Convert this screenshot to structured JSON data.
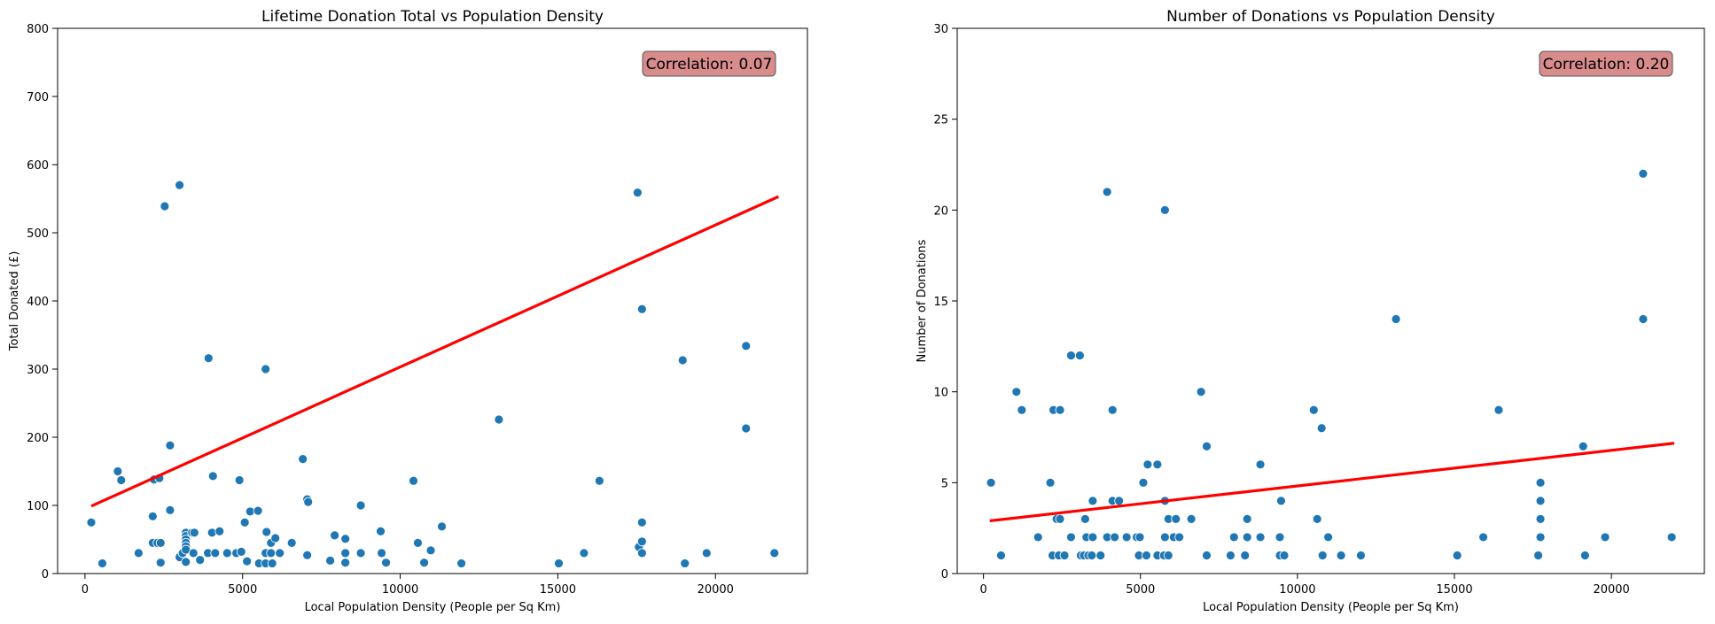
{
  "chart_data": [
    {
      "type": "scatter",
      "title": "Lifetime Donation Total vs Population Density",
      "xlabel": "Local Population Density (People per Sq Km)",
      "ylabel": "Total Donated (£)",
      "xlim": [
        -868,
        22917
      ],
      "ylim": [
        0,
        800
      ],
      "xticks": [
        0,
        5000,
        10000,
        15000,
        20000
      ],
      "yticks": [
        0,
        100,
        200,
        300,
        400,
        500,
        600,
        700,
        800
      ],
      "annotation": "Correlation: 0.07",
      "annotation_placement": "top-right",
      "point_color": "#1f77b4",
      "trend_color": "#ff0000",
      "annotation_bg": "#d98c8c",
      "trend": {
        "slope": 0.02083,
        "intercept": 94.8,
        "x_range": [
          200,
          22000
        ]
      },
      "x": [
        200,
        550,
        1040,
        1150,
        1700,
        2150,
        2150,
        2190,
        2300,
        2400,
        2360,
        2400,
        2530,
        2700,
        2700,
        3000,
        3000,
        3100,
        3200,
        3200,
        3200,
        3200,
        3200,
        3200,
        3200,
        3400,
        3440,
        3470,
        3650,
        3900,
        3920,
        4030,
        4060,
        4130,
        4270,
        4510,
        4800,
        4900,
        4960,
        5070,
        5140,
        5240,
        5490,
        5520,
        5730,
        5730,
        5760,
        5730,
        5900,
        5900,
        5940,
        6040,
        6180,
        6560,
        6910,
        7050,
        7080,
        7050,
        7780,
        7920,
        8260,
        8260,
        8260,
        8750,
        8750,
        9380,
        9410,
        9550,
        10420,
        10560,
        10760,
        10970,
        11320,
        11940,
        13130,
        15030,
        15830,
        16320,
        17530,
        17570,
        17670,
        17670,
        17670,
        17670,
        18960,
        19030,
        19720,
        20970,
        20970,
        21870
      ],
      "y": [
        75,
        15,
        150,
        137,
        30,
        84,
        45,
        138,
        45,
        45,
        140,
        16,
        539,
        93,
        188,
        570,
        24,
        30,
        17,
        60,
        55,
        50,
        45,
        40,
        35,
        60,
        30,
        60,
        20,
        30,
        316,
        60,
        143,
        30,
        62,
        30,
        30,
        137,
        32,
        75,
        18,
        91,
        92,
        15,
        300,
        30,
        61,
        15,
        30,
        45,
        15,
        52,
        30,
        45,
        168,
        109,
        105,
        27,
        19,
        56,
        51,
        30,
        16,
        100,
        30,
        62,
        30,
        16,
        136,
        45,
        16,
        34,
        69,
        15,
        226,
        15,
        30,
        136,
        559,
        39,
        388,
        75,
        47,
        30,
        313,
        15,
        30,
        334,
        213,
        30
      ]
    },
    {
      "type": "scatter",
      "title": "Number of Donations vs Population Density",
      "xlabel": "Local Population Density (People per Sq Km)",
      "ylabel": "Number of Donations",
      "xlim": [
        -836,
        22960
      ],
      "ylim": [
        0,
        30
      ],
      "xticks": [
        0,
        5000,
        10000,
        15000,
        20000
      ],
      "yticks": [
        0,
        5,
        10,
        15,
        20,
        25,
        30
      ],
      "annotation": "Correlation: 0.20",
      "annotation_placement": "top-right",
      "point_color": "#1f77b4",
      "trend_color": "#ff0000",
      "annotation_bg": "#d98c8c",
      "trend": {
        "slope": 0.000196,
        "intercept": 2.86,
        "x_range": [
          200,
          22000
        ]
      },
      "x": [
        240,
        560,
        1050,
        1220,
        1740,
        2130,
        2230,
        2200,
        2330,
        2400,
        2440,
        2440,
        2580,
        2790,
        2790,
        3070,
        3100,
        3200,
        3240,
        3280,
        3340,
        3480,
        3450,
        3480,
        3730,
        3940,
        3940,
        4110,
        4110,
        4180,
        4320,
        4560,
        4880,
        4980,
        5090,
        4950,
        5190,
        5230,
        5540,
        5540,
        5780,
        5780,
        5780,
        5750,
        5890,
        5890,
        6060,
        6130,
        6240,
        6620,
        6930,
        7110,
        7110,
        7870,
        7980,
        8330,
        8400,
        8400,
        8820,
        8820,
        9440,
        9480,
        9440,
        9580,
        10520,
        10630,
        10770,
        10800,
        10980,
        11390,
        12020,
        13140,
        15090,
        15920,
        16410,
        17670,
        17740,
        17740,
        17740,
        17740,
        19100,
        19160,
        19800,
        21010,
        21010,
        21920
      ],
      "y": [
        5,
        1,
        10,
        9,
        2,
        5,
        9,
        1,
        3,
        1,
        3,
        9,
        1,
        12,
        2,
        12,
        1,
        1,
        3,
        2,
        1,
        2,
        1,
        4,
        1,
        21,
        2,
        4,
        9,
        2,
        4,
        2,
        2,
        2,
        5,
        1,
        1,
        6,
        1,
        6,
        20,
        4,
        2,
        1,
        1,
        3,
        2,
        3,
        2,
        3,
        10,
        7,
        1,
        1,
        2,
        1,
        3,
        2,
        6,
        2,
        2,
        4,
        1,
        1,
        9,
        3,
        8,
        1,
        2,
        1,
        1,
        14,
        1,
        2,
        9,
        1,
        5,
        4,
        3,
        2,
        7,
        1,
        2,
        22,
        14,
        2
      ]
    }
  ]
}
